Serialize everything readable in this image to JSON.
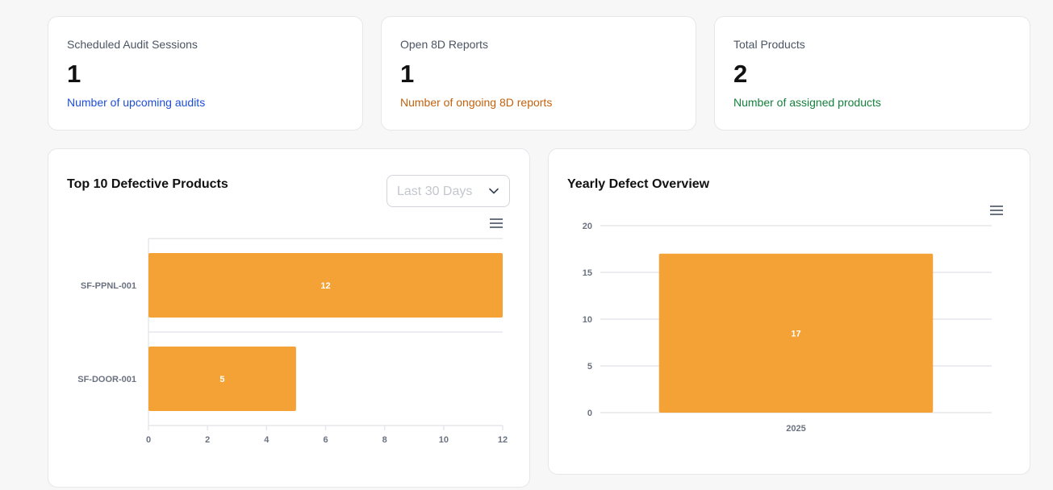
{
  "stats": [
    {
      "title": "Scheduled Audit Sessions",
      "value": "1",
      "description": "Number of upcoming audits",
      "color": "#1d4ed8"
    },
    {
      "title": "Open 8D Reports",
      "value": "1",
      "description": "Number of ongoing 8D reports",
      "color": "#c2620e"
    },
    {
      "title": "Total Products",
      "value": "2",
      "description": "Number of assigned products",
      "color": "#15803d"
    }
  ],
  "defective_panel": {
    "title": "Top 10 Defective Products",
    "filter_value": "Last 30 Days",
    "menu_icon": "hamburger-menu-icon"
  },
  "yearly_panel": {
    "title": "Yearly Defect Overview",
    "menu_icon": "hamburger-menu-icon"
  },
  "colors": {
    "bar": "#f4a236",
    "grid": "#e5e7eb"
  },
  "chart_data": [
    {
      "type": "bar",
      "orientation": "horizontal",
      "title": "Top 10 Defective Products",
      "categories": [
        "SF-PPNL-001",
        "SF-DOOR-001"
      ],
      "values": [
        12,
        5
      ],
      "xlim": [
        0,
        12
      ],
      "x_ticks": [
        0,
        2,
        4,
        6,
        8,
        10,
        12
      ],
      "data_labels": true,
      "grid": true
    },
    {
      "type": "bar",
      "orientation": "vertical",
      "title": "Yearly Defect Overview",
      "categories": [
        "2025"
      ],
      "values": [
        17
      ],
      "ylim": [
        0,
        20
      ],
      "y_ticks": [
        0,
        5,
        10,
        15,
        20
      ],
      "data_labels": true,
      "grid": true
    }
  ]
}
